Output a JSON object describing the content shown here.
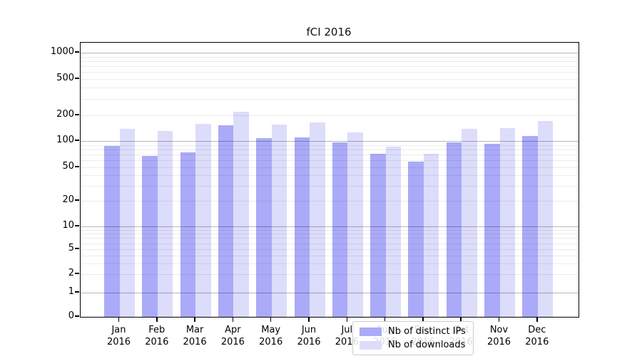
{
  "title": "fCI 2016",
  "chart_data": {
    "type": "bar",
    "title": "fCI 2016",
    "categories": [
      "Jan 2016",
      "Feb 2016",
      "Mar 2016",
      "Apr 2016",
      "May 2016",
      "Jun 2016",
      "Jul 2016",
      "Aug 2016",
      "Sep 2016",
      "Oct 2016",
      "Nov 2016",
      "Dec 2016"
    ],
    "x_tick_months": [
      "Jan",
      "Feb",
      "Mar",
      "Apr",
      "May",
      "Jun",
      "Jul",
      "Aug",
      "Sep",
      "Oct",
      "Nov",
      "Dec"
    ],
    "x_tick_year": "2016",
    "series": [
      {
        "name": "Nb of distinct IPs",
        "color": "#aaaaf8",
        "values": [
          88,
          68,
          74,
          152,
          107,
          110,
          97,
          71,
          58,
          96,
          93,
          115
        ]
      },
      {
        "name": "Nb of downloads",
        "color": "#dcdcfb",
        "values": [
          138,
          132,
          158,
          220,
          156,
          165,
          126,
          86,
          72,
          138,
          142,
          172
        ]
      }
    ],
    "y_ticks": [
      0,
      1,
      2,
      5,
      10,
      20,
      50,
      100,
      200,
      500,
      1000
    ],
    "y_scale": "symlog",
    "ylim": [
      0,
      1300
    ],
    "xlabel": "",
    "ylabel": "",
    "grid": true,
    "legend_position": "lower center"
  }
}
